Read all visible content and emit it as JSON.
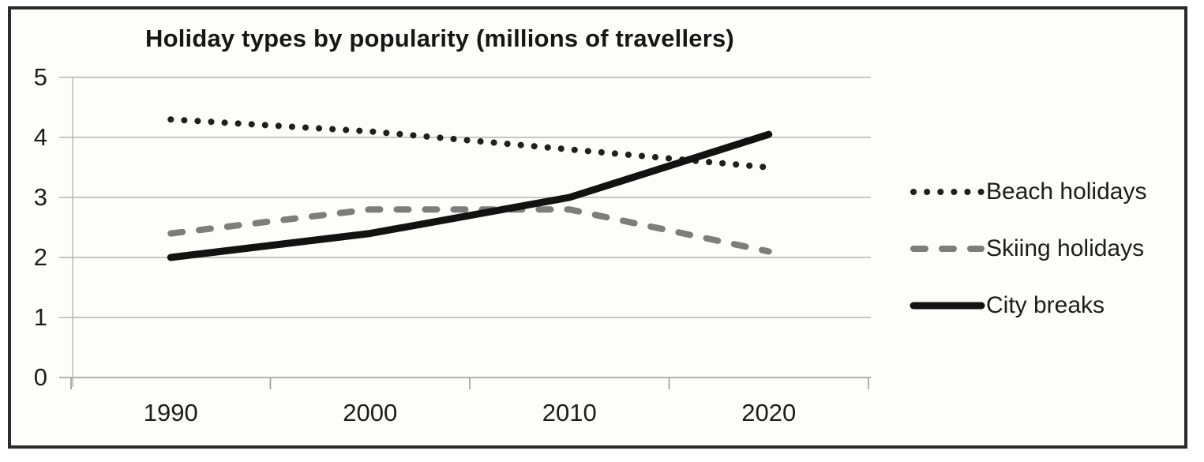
{
  "figure": {
    "title": "Holiday types by popularity (millions of travellers)"
  },
  "chart_data": {
    "type": "line",
    "title": "Holiday types by popularity (millions of travellers)",
    "categories": [
      "1990",
      "2000",
      "2010",
      "2020"
    ],
    "series": [
      {
        "name": "Beach holidays",
        "values": [
          4.3,
          4.1,
          3.8,
          3.5
        ],
        "line_style": "dotted",
        "color": "#1f1f1f"
      },
      {
        "name": "Skiing holidays",
        "values": [
          2.4,
          2.8,
          2.8,
          2.1
        ],
        "line_style": "dashed",
        "color": "#7d7d7d"
      },
      {
        "name": "City breaks",
        "values": [
          2.0,
          2.4,
          3.0,
          4.05
        ],
        "line_style": "solid",
        "color": "#121212"
      }
    ],
    "xlabel": "",
    "ylabel": "",
    "ylim": [
      0,
      5
    ],
    "yticks": [
      5,
      4,
      3,
      2,
      1,
      0
    ],
    "grid": true,
    "legend_position": "right"
  },
  "colors": {
    "grid": "#b3b3b3",
    "axis": "#9a9a9a",
    "text": "#1c1c1c",
    "frame": "#2b2b2b",
    "background": "#fdfdfc"
  }
}
